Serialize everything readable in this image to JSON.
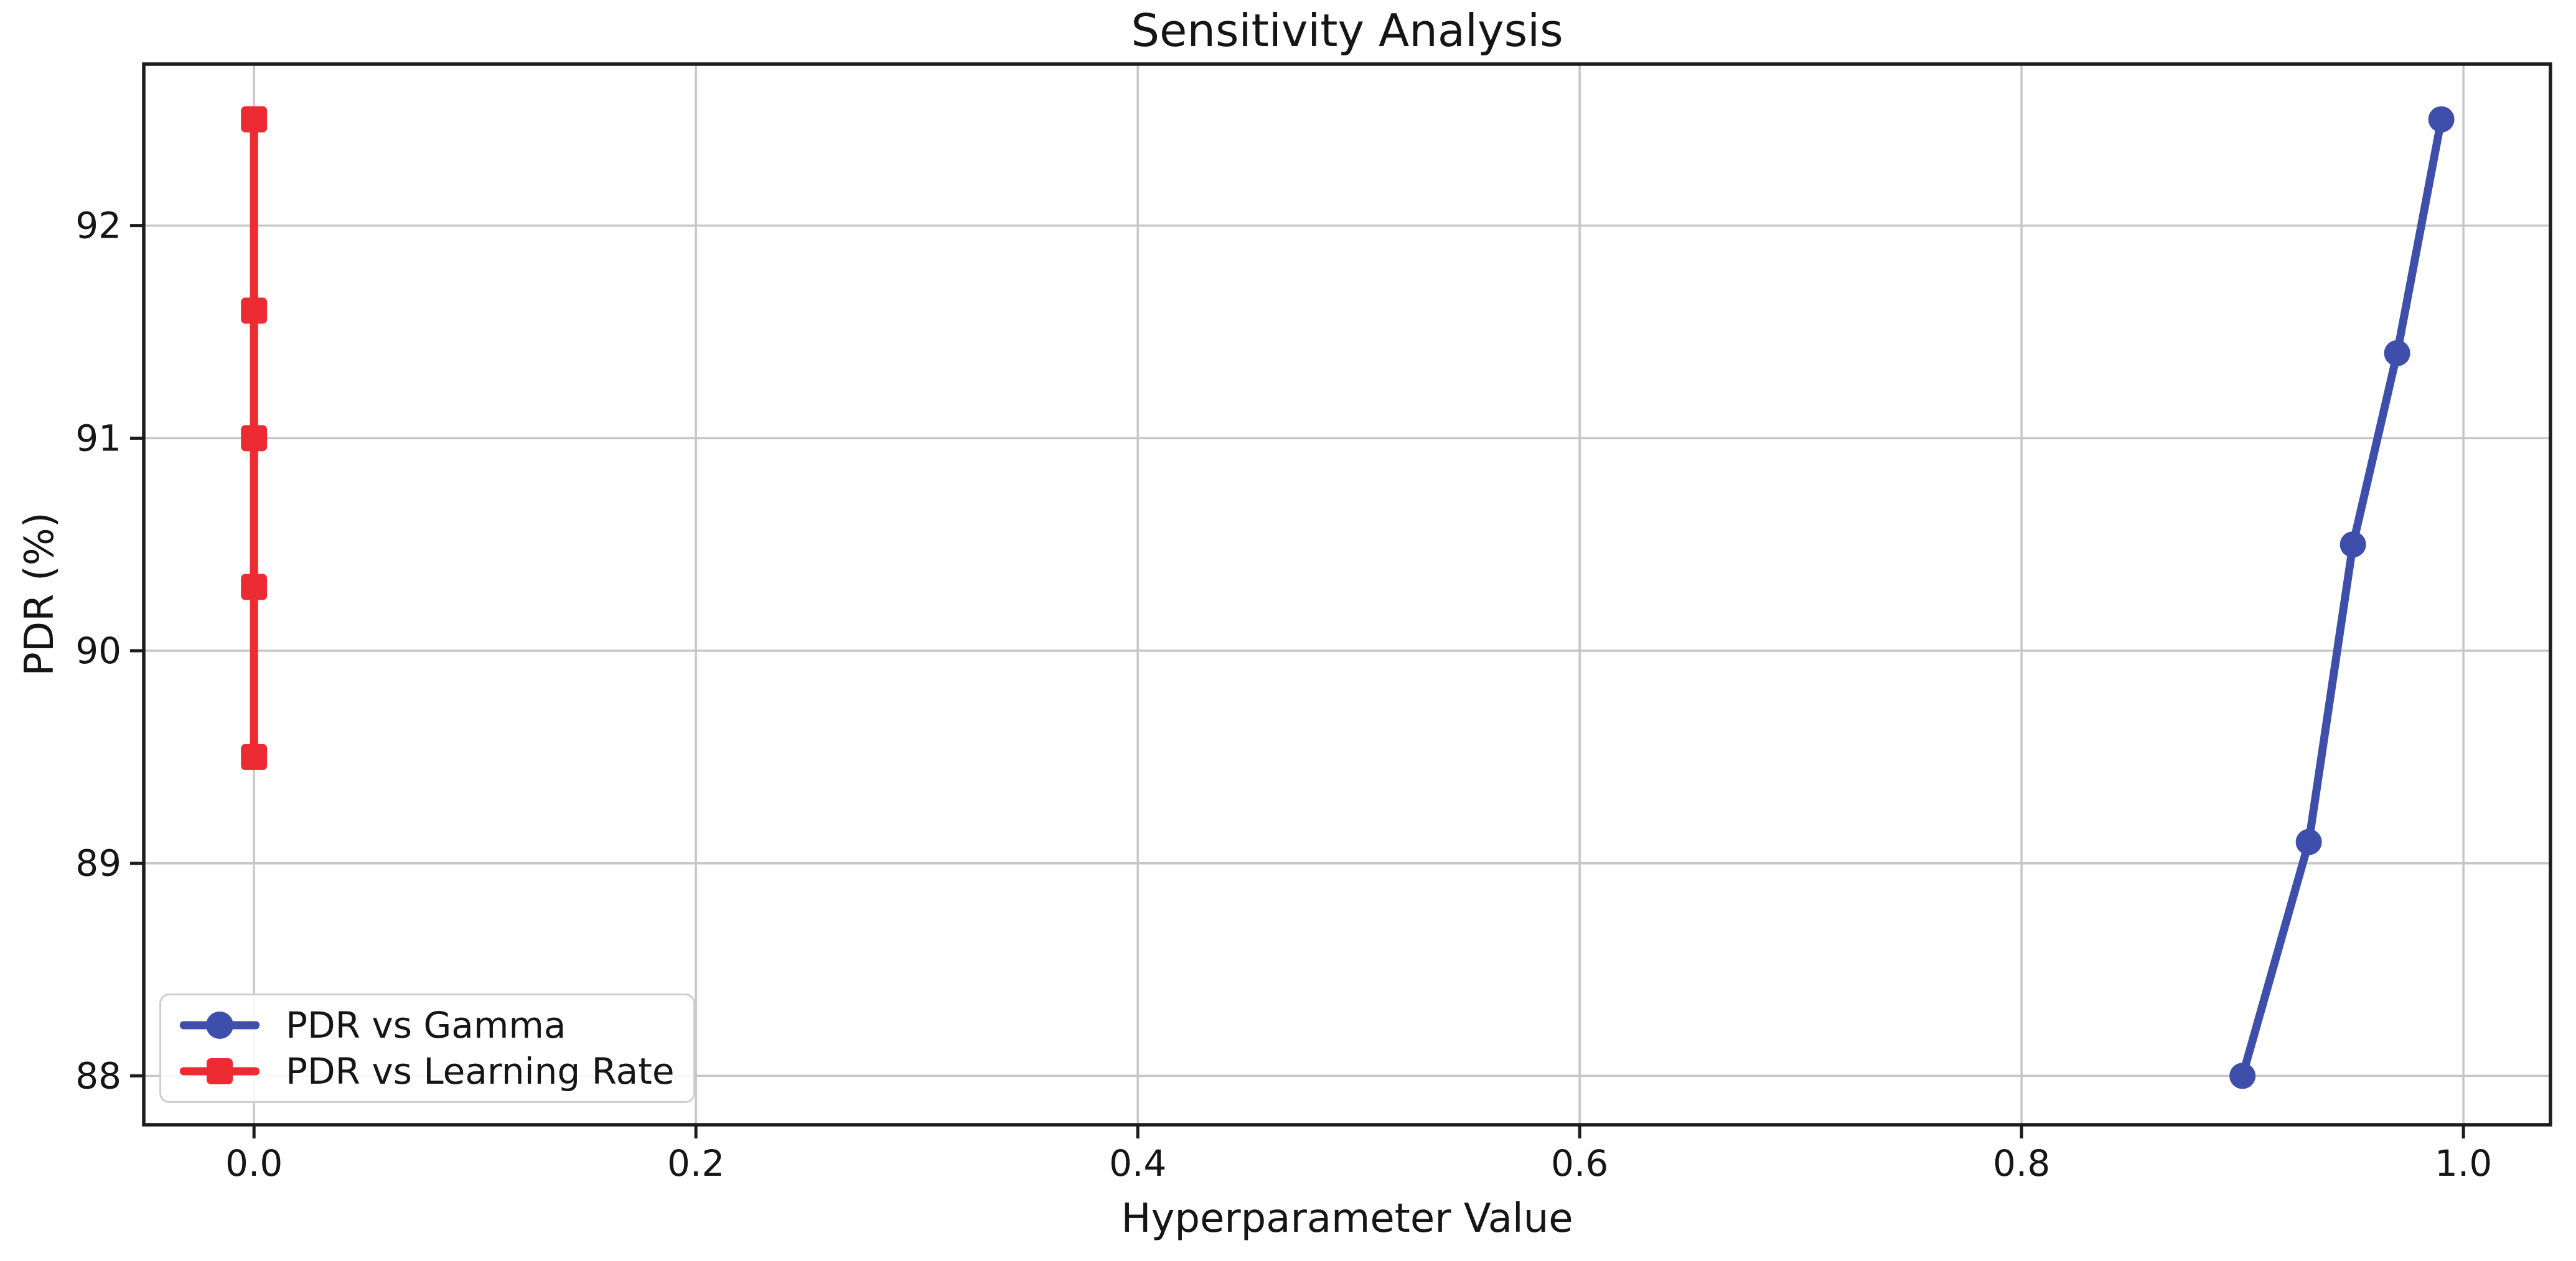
{
  "chart_data": {
    "type": "line",
    "title": "Sensitivity Analysis",
    "xlabel": "Hyperparameter Value",
    "ylabel": "PDR (%)",
    "xlim": [
      -0.0499,
      1.0394
    ],
    "ylim": [
      87.77,
      92.76
    ],
    "xticks": {
      "values": [
        0.0,
        0.2,
        0.4,
        0.6,
        0.8,
        1.0
      ],
      "labels": [
        "0.0",
        "0.2",
        "0.4",
        "0.6",
        "0.8",
        "1.0"
      ]
    },
    "yticks": {
      "values": [
        88,
        89,
        90,
        91,
        92
      ],
      "labels": [
        "88",
        "89",
        "90",
        "91",
        "92"
      ]
    },
    "grid": true,
    "legend_position": "lower left",
    "series": [
      {
        "name": "PDR vs Gamma",
        "color": "#3e4fab",
        "marker": "circle",
        "x": [
          0.9,
          0.93,
          0.95,
          0.97,
          0.99
        ],
        "y": [
          88.0,
          89.1,
          90.5,
          91.4,
          92.5
        ]
      },
      {
        "name": "PDR vs Learning Rate",
        "color": "#ed2b33",
        "marker": "square",
        "x": [
          0.0,
          0.0,
          0.0,
          0.0,
          0.0
        ],
        "y": [
          92.5,
          91.6,
          91.0,
          90.3,
          89.5
        ]
      }
    ]
  },
  "colors": {
    "background": "#ffffff",
    "grid": "#c6c6c6",
    "spine": "#1c1c1c",
    "tick": "#1c1c1c",
    "text": "#151515"
  }
}
